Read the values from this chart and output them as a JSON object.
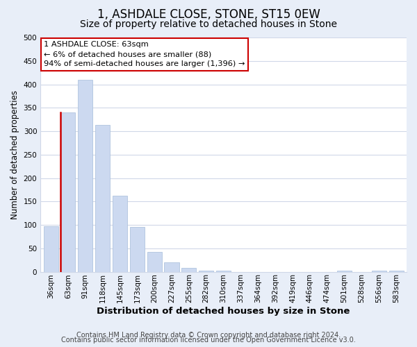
{
  "title": "1, ASHDALE CLOSE, STONE, ST15 0EW",
  "subtitle": "Size of property relative to detached houses in Stone",
  "xlabel": "Distribution of detached houses by size in Stone",
  "ylabel": "Number of detached properties",
  "bar_labels": [
    "36sqm",
    "63sqm",
    "91sqm",
    "118sqm",
    "145sqm",
    "173sqm",
    "200sqm",
    "227sqm",
    "255sqm",
    "282sqm",
    "310sqm",
    "337sqm",
    "364sqm",
    "392sqm",
    "419sqm",
    "446sqm",
    "474sqm",
    "501sqm",
    "528sqm",
    "556sqm",
    "583sqm"
  ],
  "bar_values": [
    97,
    340,
    410,
    314,
    163,
    95,
    42,
    20,
    8,
    3,
    2,
    0,
    0,
    0,
    0,
    0,
    0,
    2,
    0,
    2,
    2
  ],
  "bar_color": "#ccd9f0",
  "bar_edge_color": "#b0c4de",
  "highlight_bar_index": 1,
  "highlight_bar_edge_color": "#cc0000",
  "annotation_line1": "1 ASHDALE CLOSE: 63sqm",
  "annotation_line2": "← 6% of detached houses are smaller (88)",
  "annotation_line3": "94% of semi-detached houses are larger (1,396) →",
  "annotation_box_edge_color": "#cc0000",
  "ylim": [
    0,
    500
  ],
  "yticks": [
    0,
    50,
    100,
    150,
    200,
    250,
    300,
    350,
    400,
    450,
    500
  ],
  "footer_line1": "Contains HM Land Registry data © Crown copyright and database right 2024.",
  "footer_line2": "Contains public sector information licensed under the Open Government Licence v3.0.",
  "fig_bg_color": "#e8eef8",
  "plot_bg_color": "#ffffff",
  "grid_color": "#d0d8e8",
  "title_fontsize": 12,
  "subtitle_fontsize": 10,
  "xlabel_fontsize": 9.5,
  "ylabel_fontsize": 8.5,
  "tick_fontsize": 7.5,
  "footer_fontsize": 7
}
